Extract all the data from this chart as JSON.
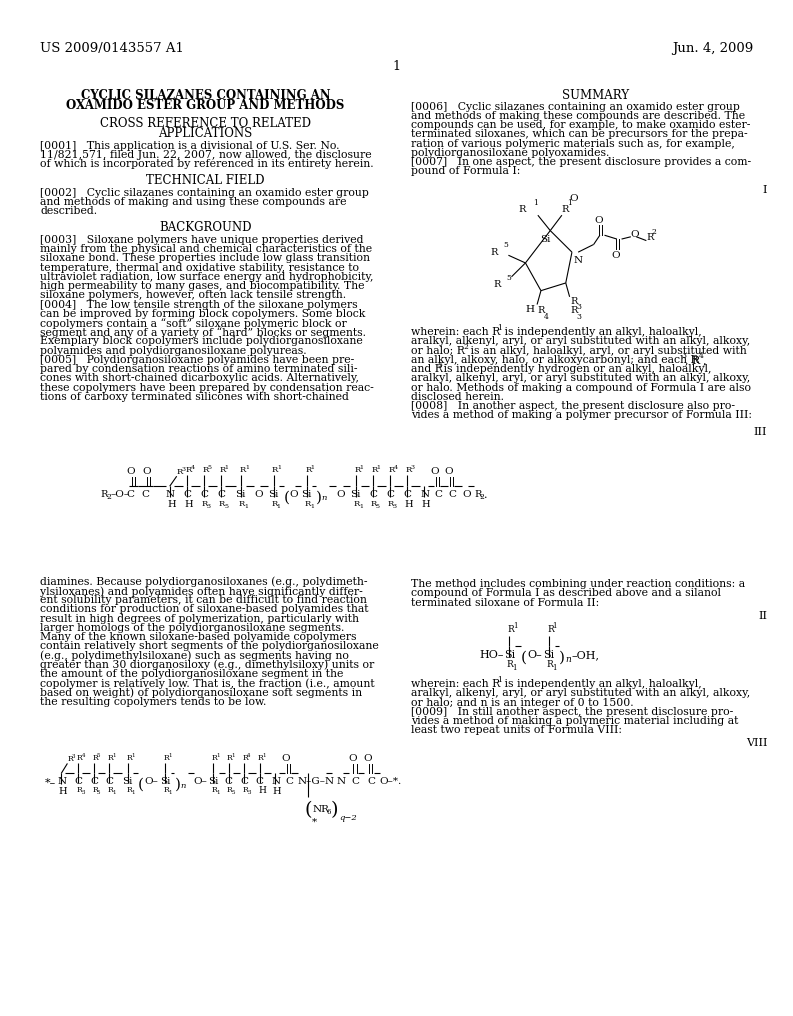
{
  "bg": "#ffffff",
  "header_left": "US 2009/0143557 A1",
  "header_right": "Jun. 4, 2009",
  "page_num": "1"
}
